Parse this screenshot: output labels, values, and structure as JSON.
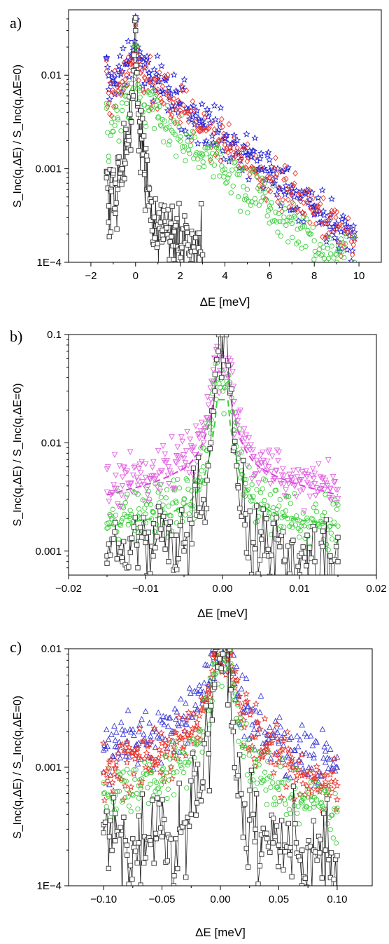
{
  "chart_data": [
    {
      "type": "scatter",
      "panel_label": "a)",
      "xlabel": "ΔE [meV]",
      "ylabel": "S_Inc(q,ΔE) / S_Inc(q,ΔE=0)",
      "xlim": [
        -3,
        11
      ],
      "ylim": [
        0.0001,
        0.05
      ],
      "yscale": "log",
      "xticks": [
        -2,
        0,
        2,
        4,
        6,
        8,
        10
      ],
      "xtick_labels": [
        "−2",
        "0",
        "2",
        "4",
        "6",
        "8",
        "10"
      ],
      "yticks": [
        0.0001,
        0.001,
        0.01
      ],
      "ytick_labels": [
        "1E−4",
        "0.001",
        "0.01"
      ],
      "grid": false,
      "series": [
        {
          "color": "#1f1fd6",
          "marker": "star",
          "x": [
            -1.3,
            -1.2,
            -1.0,
            -0.8,
            -0.6,
            -0.4,
            -0.2,
            -0.1,
            0,
            0.1,
            0.2,
            0.4,
            0.6,
            1,
            1.5,
            2,
            3,
            4,
            5,
            6,
            7,
            8,
            9,
            9.8
          ],
          "y": [
            0.015,
            0.007,
            0.009,
            0.01,
            0.011,
            0.013,
            0.016,
            0.02,
            0.04,
            0.02,
            0.015,
            0.012,
            0.0105,
            0.0085,
            0.0065,
            0.005,
            0.0032,
            0.0021,
            0.0014,
            0.00095,
            0.00062,
            0.0004,
            0.00026,
            0.00018
          ]
        },
        {
          "color": "#e8352b",
          "marker": "diamond",
          "x": [
            -1.3,
            -1.2,
            -1.0,
            -0.8,
            -0.6,
            -0.4,
            -0.2,
            -0.1,
            0,
            0.1,
            0.2,
            0.4,
            0.6,
            1,
            1.5,
            2,
            3,
            4,
            5,
            6,
            7,
            8,
            9,
            9.8
          ],
          "y": [
            0.011,
            0.005,
            0.0065,
            0.0075,
            0.0085,
            0.01,
            0.013,
            0.017,
            0.035,
            0.016,
            0.012,
            0.0095,
            0.0085,
            0.007,
            0.0055,
            0.0042,
            0.0027,
            0.0018,
            0.0012,
            0.0008,
            0.00052,
            0.00034,
            0.00023,
            0.00017
          ]
        },
        {
          "color": "#3fcf3f",
          "marker": "circle",
          "x": [
            -1.3,
            -1.2,
            -1.0,
            -0.8,
            -0.6,
            -0.4,
            -0.2,
            -0.1,
            0,
            0.1,
            0.2,
            0.4,
            0.6,
            1,
            1.5,
            2,
            3,
            4,
            5,
            6,
            7,
            8,
            9,
            9.8
          ],
          "y": [
            0.005,
            0.0012,
            0.0025,
            0.0035,
            0.0042,
            0.005,
            0.0065,
            0.009,
            0.02,
            0.008,
            0.0058,
            0.0048,
            0.0042,
            0.0035,
            0.0028,
            0.0022,
            0.0014,
            0.0009,
            0.0006,
            0.0004,
            0.00026,
            0.00017,
            0.00012,
            0.0001
          ]
        },
        {
          "color": "#333333",
          "marker": "square",
          "line": true,
          "x": [
            -1.3,
            -1.2,
            -1.1,
            -1.0,
            -0.9,
            -0.8,
            -0.7,
            -0.6,
            -0.5,
            -0.4,
            -0.3,
            -0.2,
            -0.1,
            0,
            0.1,
            0.2,
            0.3,
            0.4,
            0.5,
            0.6,
            0.8,
            1.0,
            1.2,
            1.5,
            1.8,
            2.0,
            2.5,
            3.0
          ],
          "y": [
            0.0008,
            0.0004,
            0.0006,
            0.0009,
            0.0007,
            0.0006,
            0.0008,
            0.001,
            0.0012,
            0.0015,
            0.002,
            0.0032,
            0.006,
            0.03,
            0.005,
            0.0025,
            0.0014,
            0.0009,
            0.0006,
            0.0004,
            0.0003,
            0.00025,
            0.00022,
            0.00018,
            0.00015,
            0.00014,
            0.00013,
            0.00012
          ]
        }
      ]
    },
    {
      "type": "scatter",
      "panel_label": "b)",
      "xlabel": "ΔE [meV]",
      "ylabel": "S_Inc(q,ΔE) / S_Inc(q,ΔE=0)",
      "xlim": [
        -0.02,
        0.02
      ],
      "ylim": [
        0.0006,
        0.1
      ],
      "yscale": "log",
      "xticks": [
        -0.02,
        -0.01,
        0,
        0.01,
        0.02
      ],
      "xtick_labels": [
        "−0.02",
        "−0.01",
        "0.00",
        "0.01",
        "0.02"
      ],
      "yticks": [
        0.001,
        0.01,
        0.1
      ],
      "ytick_labels": [
        "0.001",
        "0.01",
        "0.1"
      ],
      "grid": false,
      "series": [
        {
          "color": "#e060e0",
          "marker": "triangle-down",
          "x": [
            -0.015,
            -0.014,
            -0.013,
            -0.012,
            -0.011,
            -0.01,
            -0.009,
            -0.008,
            -0.007,
            -0.006,
            -0.005,
            -0.004,
            -0.003,
            -0.0025,
            -0.002,
            -0.0015,
            -0.001,
            0.001,
            0.0015,
            0.002,
            0.0025,
            0.003,
            0.004,
            0.005,
            0.006,
            0.007,
            0.008,
            0.009,
            0.01,
            0.011,
            0.012,
            0.013,
            0.014,
            0.015
          ],
          "y": [
            0.0035,
            0.0038,
            0.004,
            0.0042,
            0.0045,
            0.0048,
            0.005,
            0.0055,
            0.006,
            0.0065,
            0.0072,
            0.0085,
            0.011,
            0.013,
            0.017,
            0.025,
            0.06,
            0.05,
            0.024,
            0.016,
            0.012,
            0.0095,
            0.0075,
            0.0065,
            0.006,
            0.0055,
            0.005,
            0.0048,
            0.0045,
            0.0043,
            0.0042,
            0.004,
            0.0038,
            0.0037
          ]
        },
        {
          "color": "#3fcf3f",
          "marker": "circle",
          "x": [
            -0.015,
            -0.014,
            -0.013,
            -0.012,
            -0.011,
            -0.01,
            -0.009,
            -0.008,
            -0.007,
            -0.006,
            -0.005,
            -0.004,
            -0.003,
            -0.0025,
            -0.002,
            -0.0015,
            -0.001,
            0.001,
            0.0015,
            0.002,
            0.0025,
            0.003,
            0.004,
            0.005,
            0.006,
            0.007,
            0.008,
            0.009,
            0.01,
            0.011,
            0.012,
            0.013,
            0.014,
            0.015
          ],
          "y": [
            0.0018,
            0.0019,
            0.002,
            0.002,
            0.0021,
            0.0022,
            0.0023,
            0.0024,
            0.0026,
            0.0028,
            0.003,
            0.0036,
            0.0048,
            0.006,
            0.0085,
            0.014,
            0.035,
            0.03,
            0.013,
            0.008,
            0.0055,
            0.0042,
            0.0032,
            0.0027,
            0.0024,
            0.0022,
            0.0021,
            0.002,
            0.0019,
            0.0019,
            0.0018,
            0.0018,
            0.0017,
            0.0017
          ]
        },
        {
          "color": "#333333",
          "marker": "square",
          "line": true,
          "x": [
            -0.015,
            -0.014,
            -0.013,
            -0.012,
            -0.011,
            -0.01,
            -0.009,
            -0.008,
            -0.007,
            -0.006,
            -0.005,
            -0.004,
            -0.003,
            -0.002,
            -0.0015,
            -0.001,
            -0.0005,
            0,
            0.0005,
            0.001,
            0.0015,
            0.002,
            0.003,
            0.004,
            0.005,
            0.006,
            0.007,
            0.008,
            0.009,
            0.01,
            0.011,
            0.012,
            0.013,
            0.014,
            0.015
          ],
          "y": [
            0.0009,
            0.0015,
            0.0008,
            0.0013,
            0.0007,
            0.0012,
            0.0009,
            0.0016,
            0.0008,
            0.0014,
            0.001,
            0.0018,
            0.0025,
            0.0045,
            0.01,
            0.03,
            0.1,
            0.1,
            0.1,
            0.03,
            0.009,
            0.004,
            0.0022,
            0.0012,
            0.0015,
            0.0009,
            0.0013,
            0.0008,
            0.0012,
            0.0009,
            0.0014,
            0.0008,
            0.0011,
            0.0009,
            0.0008
          ]
        }
      ],
      "fits": [
        {
          "color": "#d63fd6",
          "style": "dashed",
          "x": [
            -0.015,
            -0.013,
            -0.011,
            -0.009,
            -0.007,
            -0.005,
            -0.004,
            -0.003,
            -0.0025,
            -0.002,
            -0.0015,
            -0.001,
            -0.0007,
            0.0007,
            0.001,
            0.0015,
            0.002,
            0.0025,
            0.003,
            0.004,
            0.005,
            0.007,
            0.009,
            0.011,
            0.013,
            0.015
          ],
          "y": [
            0.0033,
            0.0036,
            0.0039,
            0.0043,
            0.0049,
            0.0058,
            0.0067,
            0.0085,
            0.0102,
            0.013,
            0.018,
            0.028,
            0.045,
            0.045,
            0.028,
            0.018,
            0.013,
            0.0102,
            0.0085,
            0.0067,
            0.0058,
            0.0049,
            0.0043,
            0.0039,
            0.0036,
            0.0033
          ]
        },
        {
          "color": "#3fcf3f",
          "style": "dashed",
          "x": [
            -0.015,
            -0.013,
            -0.011,
            -0.009,
            -0.007,
            -0.005,
            -0.004,
            -0.003,
            -0.0025,
            -0.002,
            -0.0015,
            -0.001,
            -0.0007,
            0.0007,
            0.001,
            0.0015,
            0.002,
            0.0025,
            0.003,
            0.004,
            0.005,
            0.007,
            0.009,
            0.011,
            0.013,
            0.015
          ],
          "y": [
            0.0017,
            0.0018,
            0.0019,
            0.002,
            0.0022,
            0.0026,
            0.003,
            0.0038,
            0.0046,
            0.006,
            0.0088,
            0.015,
            0.025,
            0.025,
            0.015,
            0.0088,
            0.006,
            0.0046,
            0.0038,
            0.003,
            0.0026,
            0.0022,
            0.002,
            0.0019,
            0.0018,
            0.0017
          ]
        }
      ]
    },
    {
      "type": "scatter",
      "panel_label": "c)",
      "xlabel": "ΔE [meV]",
      "ylabel": "S_Inc(q,ΔE) / S_Inc(q,ΔE=0)",
      "xlim": [
        -0.13,
        0.13
      ],
      "ylim": [
        0.0001,
        0.01
      ],
      "yscale": "log",
      "xticks": [
        -0.1,
        -0.05,
        0,
        0.05,
        0.1
      ],
      "xtick_labels": [
        "−0.10",
        "−0.05",
        "0.00",
        "0.05",
        "0.10"
      ],
      "yticks": [
        0.0001,
        0.001,
        0.01
      ],
      "ytick_labels": [
        "1E−4",
        "0.001",
        "0.01"
      ],
      "grid": false,
      "series": [
        {
          "color": "#3b3bd6",
          "marker": "triangle",
          "x": [
            -0.1,
            -0.09,
            -0.08,
            -0.07,
            -0.06,
            -0.05,
            -0.04,
            -0.03,
            -0.02,
            -0.015,
            -0.01,
            -0.007,
            -0.005,
            0.009,
            0.011,
            0.015,
            0.02,
            0.03,
            0.04,
            0.05,
            0.06,
            0.07,
            0.08,
            0.09,
            0.1
          ],
          "y": [
            0.0014,
            0.0015,
            0.0016,
            0.0016,
            0.0017,
            0.0018,
            0.002,
            0.0023,
            0.003,
            0.0037,
            0.005,
            0.0075,
            0.0095,
            0.0095,
            0.0062,
            0.0042,
            0.0032,
            0.0024,
            0.0019,
            0.0016,
            0.0014,
            0.0013,
            0.0012,
            0.0011,
            0.001
          ]
        },
        {
          "color": "#e8352b",
          "marker": "star",
          "x": [
            -0.1,
            -0.09,
            -0.08,
            -0.07,
            -0.06,
            -0.05,
            -0.04,
            -0.03,
            -0.02,
            -0.015,
            -0.01,
            -0.007,
            -0.005,
            0.009,
            0.011,
            0.015,
            0.02,
            0.03,
            0.04,
            0.05,
            0.06,
            0.07,
            0.08,
            0.09,
            0.1
          ],
          "y": [
            0.0009,
            0.001,
            0.0011,
            0.0012,
            0.0012,
            0.0013,
            0.0015,
            0.0018,
            0.0024,
            0.003,
            0.0042,
            0.0065,
            0.009,
            0.009,
            0.0055,
            0.0035,
            0.0025,
            0.0018,
            0.0014,
            0.0011,
            0.00095,
            0.00085,
            0.0008,
            0.00075,
            0.0007
          ]
        },
        {
          "color": "#3fcf3f",
          "marker": "circle",
          "x": [
            -0.1,
            -0.09,
            -0.08,
            -0.07,
            -0.06,
            -0.05,
            -0.04,
            -0.03,
            -0.02,
            -0.015,
            -0.01,
            -0.007,
            -0.005,
            0.009,
            0.011,
            0.015,
            0.02,
            0.03,
            0.04,
            0.05,
            0.06,
            0.07,
            0.08,
            0.09,
            0.1
          ],
          "y": [
            0.0006,
            0.00062,
            0.00065,
            0.0007,
            0.00072,
            0.00078,
            0.0009,
            0.0011,
            0.0016,
            0.002,
            0.003,
            0.005,
            0.0075,
            0.0075,
            0.004,
            0.0024,
            0.0016,
            0.0011,
            0.0008,
            0.00065,
            0.00055,
            0.0005,
            0.00046,
            0.00044,
            0.00042
          ]
        },
        {
          "color": "#333333",
          "marker": "square",
          "line": true,
          "x": [
            -0.1,
            -0.095,
            -0.09,
            -0.085,
            -0.08,
            -0.075,
            -0.07,
            -0.065,
            -0.06,
            -0.055,
            -0.05,
            -0.045,
            -0.04,
            -0.035,
            -0.03,
            -0.025,
            -0.02,
            -0.015,
            -0.01,
            -0.007,
            -0.005,
            -0.004,
            0.008,
            0.009,
            0.011,
            0.015,
            0.02,
            0.025,
            0.03,
            0.035,
            0.04,
            0.045,
            0.05,
            0.055,
            0.06,
            0.065,
            0.07,
            0.075,
            0.08,
            0.085,
            0.09,
            0.095,
            0.1
          ],
          "y": [
            0.00028,
            0.00026,
            0.00024,
            0.00027,
            0.00022,
            0.00025,
            0.00023,
            0.00026,
            0.00024,
            0.00025,
            0.00026,
            0.00027,
            0.0001,
            0.0003,
            0.00034,
            0.0004,
            0.0005,
            0.00075,
            0.0013,
            0.0025,
            0.005,
            0.0099,
            0.0099,
            0.0045,
            0.002,
            0.00085,
            0.00048,
            0.00036,
            0.0003,
            0.00027,
            0.00025,
            0.00023,
            0.00022,
            0.00022,
            0.00021,
            0.00023,
            0.0002,
            0.00021,
            0.0002,
            0.00019,
            0.0002,
            0.00019,
            0.00018
          ]
        }
      ]
    }
  ]
}
